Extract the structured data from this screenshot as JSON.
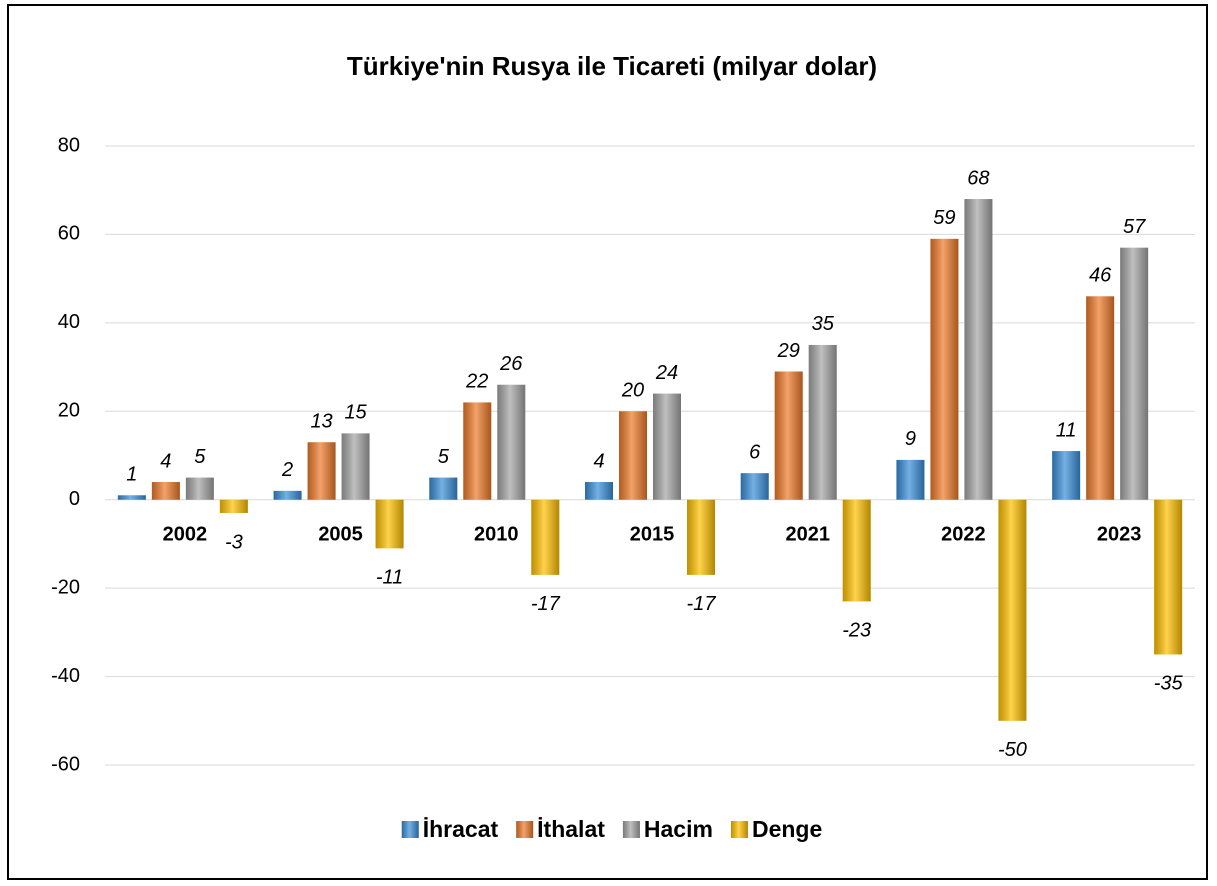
{
  "chart_data": {
    "type": "bar",
    "title": "Türkiye'nin Rusya ile Ticareti (milyar dolar)",
    "categories": [
      "2002",
      "2005",
      "2010",
      "2015",
      "2021",
      "2022",
      "2023"
    ],
    "series": [
      {
        "name": "İhracat",
        "color": "#3a8fd9",
        "values": [
          1,
          2,
          5,
          4,
          6,
          9,
          11
        ]
      },
      {
        "name": "İthalat",
        "color": "#ee7a2a",
        "values": [
          4,
          13,
          22,
          20,
          29,
          59,
          46
        ]
      },
      {
        "name": "Hacim",
        "color": "#a5a5a5",
        "values": [
          5,
          15,
          26,
          24,
          35,
          68,
          57
        ]
      },
      {
        "name": "Denge",
        "color": "#ffc000",
        "values": [
          -3,
          -11,
          -17,
          -17,
          -23,
          -50,
          -35
        ]
      }
    ],
    "ylim": [
      -60,
      80
    ],
    "yticks": [
      -60,
      -40,
      -20,
      0,
      20,
      40,
      60,
      80
    ],
    "grid": true,
    "legend": "bottom"
  }
}
